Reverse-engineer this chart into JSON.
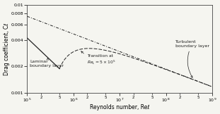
{
  "title": "",
  "xlabel": "Reynolds number, Reℓ",
  "ylabel": "Drag coefficient, Cℓ",
  "xlim": [
    100000.0,
    1000000000.0
  ],
  "ylim": [
    0.001,
    0.01
  ],
  "background_color": "#f5f5f0",
  "line_color": "#222222",
  "lam_A": 1.328,
  "turb_A": 0.074,
  "turb_B": 1742,
  "Re_trans": 500000,
  "ytick_vals": [
    0.001,
    0.002,
    0.004,
    0.006,
    0.008,
    0.01
  ],
  "ytick_labels": [
    "0.001",
    "0.002",
    "0.004",
    "0.006",
    "0.008",
    "0.01"
  ],
  "ann_lam_text": "Laminar\nboundary layer",
  "ann_trans_text": "Transition at\n$Re_L = 5 \\times 10^5$",
  "ann_turb_text": "Turbulent\nboundary layer"
}
